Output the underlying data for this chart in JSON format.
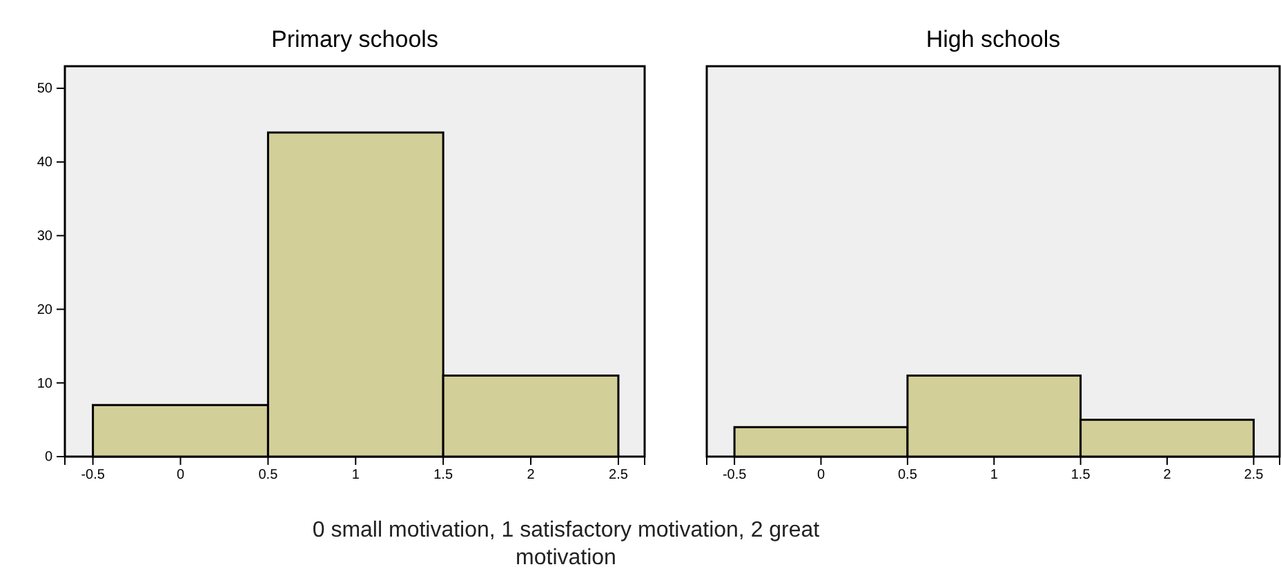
{
  "chart_data": [
    {
      "type": "histogram",
      "title": "Primary schools",
      "bins": [
        -0.5,
        0.5,
        1.5,
        2.5
      ],
      "values": [
        7,
        44,
        11
      ],
      "color": "#d3cf98",
      "xlim": [
        -0.66,
        2.65
      ],
      "ylim": [
        0,
        53
      ],
      "xticks": [
        -0.5,
        0,
        0.5,
        1,
        1.5,
        2,
        2.5
      ],
      "yticks": [
        0,
        10,
        20,
        30,
        40,
        50
      ],
      "annotations": [
        "0 small motivation, 1 satisfactory motivation, 2 great motivation"
      ]
    },
    {
      "type": "histogram",
      "title": "High schools",
      "bins": [
        -0.5,
        0.5,
        1.5,
        2.5
      ],
      "values": [
        4,
        11,
        5
      ],
      "color": "#d3cf98",
      "xlim": [
        -0.66,
        2.65
      ],
      "ylim": [
        0,
        53
      ],
      "xticks": [
        -0.5,
        0,
        0.5,
        1,
        1.5,
        2,
        2.5
      ],
      "tick_labels": "x"
    }
  ]
}
